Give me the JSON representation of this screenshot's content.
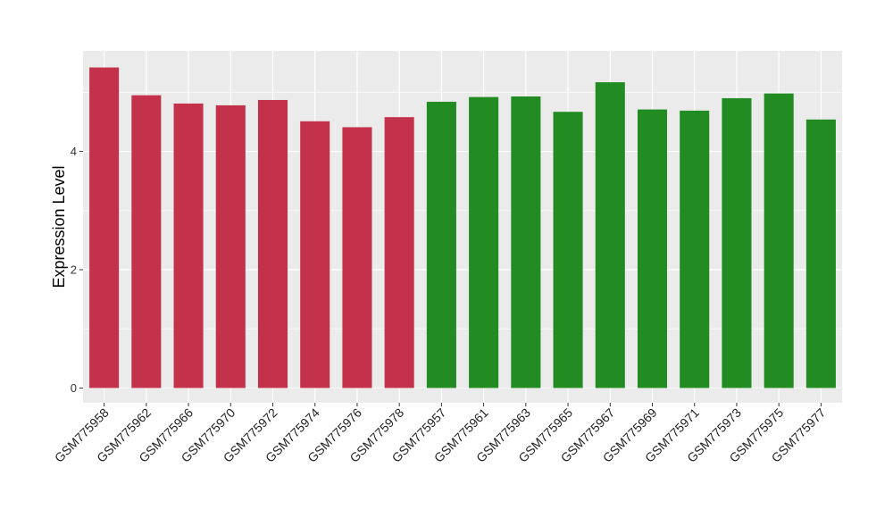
{
  "chart_data": {
    "type": "bar",
    "title": "",
    "xlabel": "",
    "ylabel": "Expression Level",
    "ylim": [
      -0.25,
      5.7
    ],
    "yticks": [
      0,
      2,
      4
    ],
    "grid": true,
    "legend": "none",
    "categories": [
      "GSM775958",
      "GSM775962",
      "GSM775966",
      "GSM775970",
      "GSM775972",
      "GSM775974",
      "GSM775976",
      "GSM775978",
      "GSM775957",
      "GSM775961",
      "GSM775963",
      "GSM775965",
      "GSM775967",
      "GSM775969",
      "GSM775971",
      "GSM775973",
      "GSM775975",
      "GSM775977"
    ],
    "values": [
      5.42,
      4.95,
      4.81,
      4.78,
      4.87,
      4.51,
      4.41,
      4.58,
      4.84,
      4.92,
      4.93,
      4.67,
      5.17,
      4.71,
      4.69,
      4.9,
      4.98,
      4.54
    ],
    "bar_colors": [
      "#C3314A",
      "#C3314A",
      "#C3314A",
      "#C3314A",
      "#C3314A",
      "#C3314A",
      "#C3314A",
      "#C3314A",
      "#228B22",
      "#228B22",
      "#228B22",
      "#228B22",
      "#228B22",
      "#228B22",
      "#228B22",
      "#228B22",
      "#228B22",
      "#228B22"
    ],
    "panel_background": "#EBEBEB",
    "grid_color": "#FFFFFF"
  }
}
